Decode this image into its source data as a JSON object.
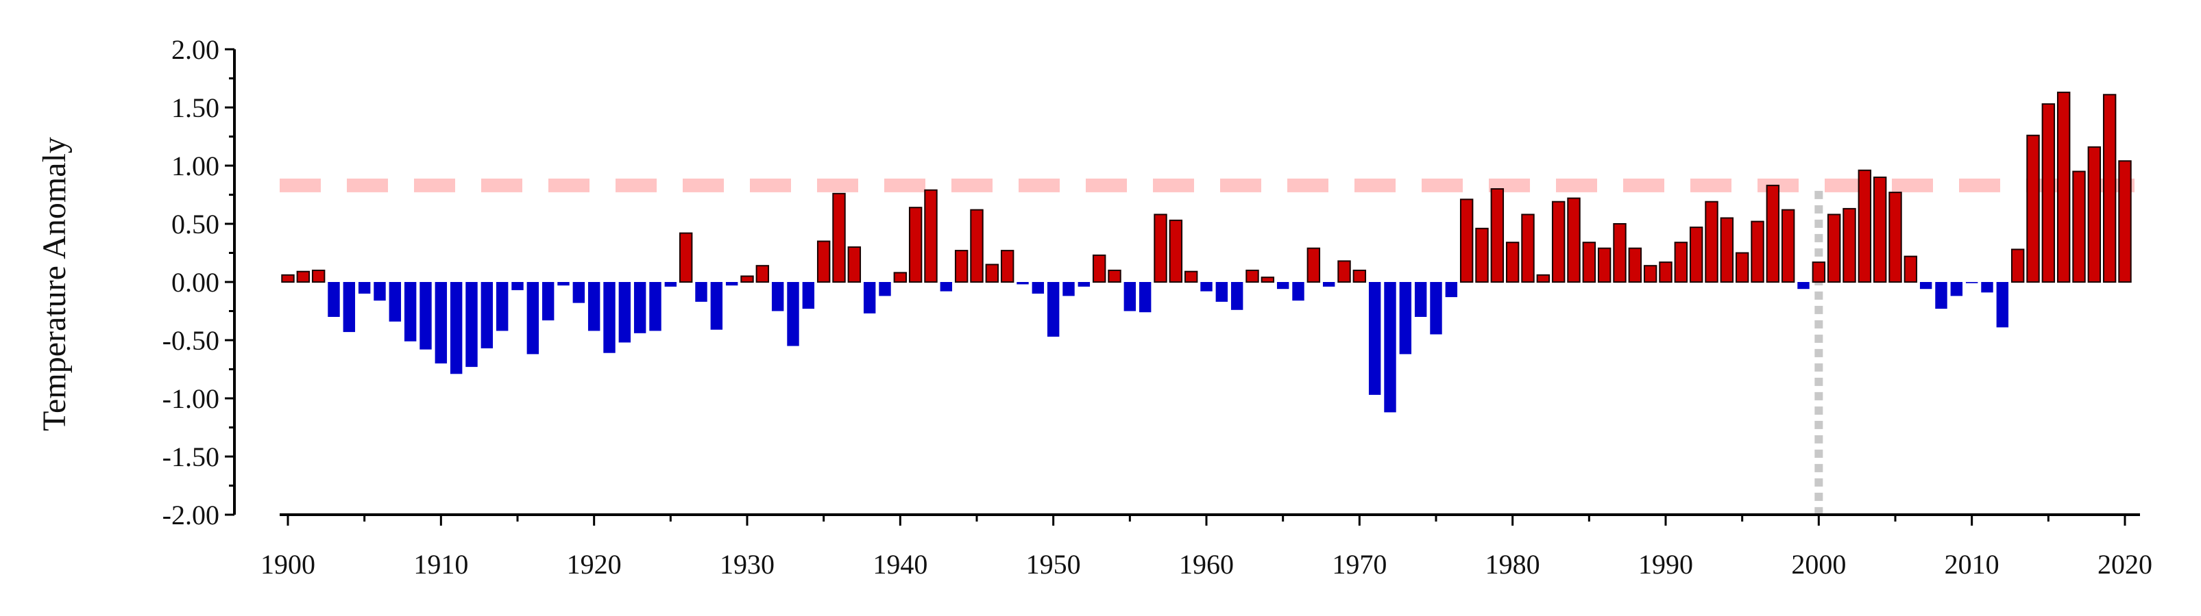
{
  "chart_data": {
    "type": "bar",
    "title": "",
    "xlabel": "",
    "ylabel": "Temperature Anomaly",
    "xlim": [
      1899.5,
      2020.5
    ],
    "ylim": [
      -2.0,
      2.0
    ],
    "y_ticks": [
      "2.00",
      "1.50",
      "1.00",
      "0.50",
      "0.00",
      "-0.50",
      "-1.00",
      "-1.50",
      "-2.00"
    ],
    "x_ticks": [
      "1900",
      "1910",
      "1920",
      "1930",
      "1940",
      "1950",
      "1960",
      "1970",
      "1980",
      "1990",
      "2000",
      "2010",
      "2020"
    ],
    "grid": false,
    "legend": "none",
    "colors": {
      "positive": "#cc0000",
      "negative": "#0000cc",
      "threshold_line": "#ffc4c4",
      "marker_line": "#c8c8c8"
    },
    "reference_lines": [
      {
        "orientation": "horizontal",
        "style": "dashed",
        "y": 0.83
      },
      {
        "orientation": "vertical",
        "style": "dotted",
        "x": 2000
      }
    ],
    "x": [
      1900,
      1901,
      1902,
      1903,
      1904,
      1905,
      1906,
      1907,
      1908,
      1909,
      1910,
      1911,
      1912,
      1913,
      1914,
      1915,
      1916,
      1917,
      1918,
      1919,
      1920,
      1921,
      1922,
      1923,
      1924,
      1925,
      1926,
      1927,
      1928,
      1929,
      1930,
      1931,
      1932,
      1933,
      1934,
      1935,
      1936,
      1937,
      1938,
      1939,
      1940,
      1941,
      1942,
      1943,
      1944,
      1945,
      1946,
      1947,
      1948,
      1949,
      1950,
      1951,
      1952,
      1953,
      1954,
      1955,
      1956,
      1957,
      1958,
      1959,
      1960,
      1961,
      1962,
      1963,
      1964,
      1965,
      1966,
      1967,
      1968,
      1969,
      1970,
      1971,
      1972,
      1973,
      1974,
      1975,
      1976,
      1977,
      1978,
      1979,
      1980,
      1981,
      1982,
      1983,
      1984,
      1985,
      1986,
      1987,
      1988,
      1989,
      1990,
      1991,
      1992,
      1993,
      1994,
      1995,
      1996,
      1997,
      1998,
      1999,
      2000,
      2001,
      2002,
      2003,
      2004,
      2005,
      2006,
      2007,
      2008,
      2009,
      2010,
      2011,
      2012,
      2013,
      2014,
      2015,
      2016,
      2017,
      2018,
      2019,
      2020
    ],
    "values": [
      0.06,
      0.09,
      0.1,
      -0.3,
      -0.43,
      -0.1,
      -0.16,
      -0.34,
      -0.51,
      -0.58,
      -0.7,
      -0.79,
      -0.73,
      -0.57,
      -0.42,
      -0.07,
      -0.62,
      -0.33,
      -0.03,
      -0.18,
      -0.42,
      -0.61,
      -0.52,
      -0.44,
      -0.42,
      -0.04,
      0.42,
      -0.17,
      -0.41,
      -0.03,
      0.05,
      0.14,
      -0.25,
      -0.55,
      -0.23,
      0.35,
      0.76,
      0.3,
      -0.27,
      -0.12,
      0.08,
      0.64,
      0.79,
      -0.08,
      0.27,
      0.62,
      0.15,
      0.27,
      -0.02,
      -0.1,
      -0.47,
      -0.12,
      -0.04,
      0.23,
      0.1,
      -0.25,
      -0.26,
      0.58,
      0.53,
      0.09,
      -0.08,
      -0.17,
      -0.24,
      0.1,
      0.04,
      -0.06,
      -0.16,
      0.29,
      -0.04,
      0.18,
      0.1,
      -0.97,
      -1.12,
      -0.62,
      -0.3,
      -0.45,
      -0.13,
      0.71,
      0.46,
      0.8,
      0.34,
      0.58,
      0.06,
      0.69,
      0.72,
      0.34,
      0.29,
      0.5,
      0.29,
      0.14,
      0.17,
      0.34,
      0.47,
      0.69,
      0.55,
      0.25,
      0.52,
      0.83,
      0.62,
      -0.06,
      0.17,
      0.58,
      0.63,
      0.96,
      0.9,
      0.77,
      0.22,
      -0.06,
      -0.23,
      -0.12,
      -0.01,
      -0.09,
      -0.39,
      0.28,
      1.26,
      1.53,
      1.63,
      0.95,
      1.16,
      1.61,
      1.04
    ]
  }
}
